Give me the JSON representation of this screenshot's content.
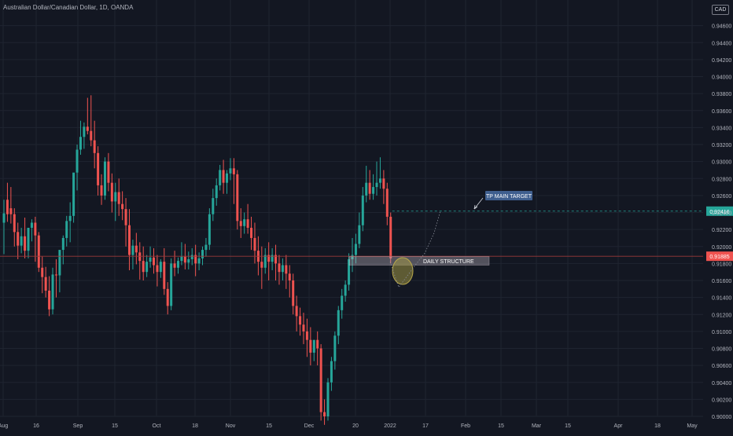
{
  "header": {
    "title": "Australian Dollar/Canadian Dollar, 1D, OANDA",
    "currency": "CAD"
  },
  "colors": {
    "background": "#131722",
    "up": "#26a69a",
    "down": "#ef5350",
    "axis_text": "#b2b5be",
    "grid": "#1f2430"
  },
  "annotations": {
    "target_label": "TP MAIN TARGET",
    "target_price": "0.92416",
    "current_price": "0.91885",
    "zone_label": "DAILY STRUCTURE"
  },
  "chart_data": {
    "type": "candlestick",
    "symbol": "AUDCAD",
    "timeframe": "1D",
    "source": "OANDA",
    "ylim": [
      0.9,
      0.948
    ],
    "y_ticks": [
      "0.94600",
      "0.94400",
      "0.94200",
      "0.94000",
      "0.93800",
      "0.93600",
      "0.93400",
      "0.93200",
      "0.93000",
      "0.92800",
      "0.92600",
      "0.92400",
      "0.92200",
      "0.92000",
      "0.91800",
      "0.91600",
      "0.91400",
      "0.91200",
      "0.91000",
      "0.90800",
      "0.90600",
      "0.90400",
      "0.90200",
      "0.90000"
    ],
    "x_ticks": [
      "Aug",
      "16",
      "Sep",
      "15",
      "Oct",
      "18",
      "Nov",
      "15",
      "Dec",
      "20",
      "2022",
      "17",
      "Feb",
      "15",
      "Mar",
      "15",
      "Apr",
      "18",
      "May"
    ],
    "target_level": 0.92416,
    "last_price": 0.91885,
    "structure_zone": [
      0.9178,
      0.9188
    ],
    "projection": [
      0.9182,
      0.9152,
      0.9178,
      0.9192,
      0.9216,
      0.9242
    ],
    "candles": [
      [
        0.9228,
        0.9255,
        0.9239,
        0.9191
      ],
      [
        0.9255,
        0.9275,
        0.9238,
        0.9229
      ],
      [
        0.9245,
        0.927,
        0.9238,
        0.9227
      ],
      [
        0.9238,
        0.9245,
        0.9217,
        0.92
      ],
      [
        0.9217,
        0.9228,
        0.9201,
        0.9185
      ],
      [
        0.9201,
        0.9222,
        0.9212,
        0.9192
      ],
      [
        0.9212,
        0.9234,
        0.9195,
        0.9186
      ],
      [
        0.9195,
        0.9215,
        0.9222,
        0.9186
      ],
      [
        0.9222,
        0.9232,
        0.9228,
        0.9206
      ],
      [
        0.9228,
        0.9235,
        0.9213,
        0.9182
      ],
      [
        0.9213,
        0.9217,
        0.9175,
        0.917
      ],
      [
        0.9175,
        0.9188,
        0.9164,
        0.9145
      ],
      [
        0.9164,
        0.9176,
        0.9148,
        0.914
      ],
      [
        0.9148,
        0.9165,
        0.9126,
        0.9118
      ],
      [
        0.9126,
        0.9175,
        0.9167,
        0.912
      ],
      [
        0.9167,
        0.9185,
        0.9166,
        0.914
      ],
      [
        0.9166,
        0.918,
        0.9196,
        0.9146
      ],
      [
        0.9196,
        0.9213,
        0.921,
        0.9179
      ],
      [
        0.921,
        0.9236,
        0.923,
        0.92
      ],
      [
        0.923,
        0.9252,
        0.9236,
        0.9205
      ],
      [
        0.9236,
        0.9268,
        0.9287,
        0.9228
      ],
      [
        0.9287,
        0.932,
        0.9314,
        0.9266
      ],
      [
        0.9314,
        0.9348,
        0.9329,
        0.9308
      ],
      [
        0.9329,
        0.9346,
        0.9341,
        0.9315
      ],
      [
        0.9341,
        0.9375,
        0.9336,
        0.9332
      ],
      [
        0.9336,
        0.9378,
        0.9325,
        0.9318
      ],
      [
        0.9325,
        0.9348,
        0.931,
        0.9292
      ],
      [
        0.931,
        0.9318,
        0.9272,
        0.926
      ],
      [
        0.9272,
        0.9285,
        0.926,
        0.9249
      ],
      [
        0.926,
        0.9305,
        0.93,
        0.9255
      ],
      [
        0.93,
        0.931,
        0.9275,
        0.9265
      ],
      [
        0.9275,
        0.9286,
        0.9253,
        0.924
      ],
      [
        0.9253,
        0.9275,
        0.9264,
        0.923
      ],
      [
        0.9264,
        0.928,
        0.925,
        0.9236
      ],
      [
        0.925,
        0.9265,
        0.9244,
        0.9231
      ],
      [
        0.9244,
        0.9257,
        0.9225,
        0.92
      ],
      [
        0.9225,
        0.9244,
        0.919,
        0.9172
      ],
      [
        0.919,
        0.9208,
        0.9201,
        0.9173
      ],
      [
        0.9201,
        0.9216,
        0.9193,
        0.9179
      ],
      [
        0.9193,
        0.9205,
        0.9183,
        0.9161
      ],
      [
        0.9183,
        0.92,
        0.917,
        0.916
      ],
      [
        0.917,
        0.919,
        0.9182,
        0.9164
      ],
      [
        0.9182,
        0.92,
        0.9187,
        0.9175
      ],
      [
        0.9187,
        0.9198,
        0.9178,
        0.9168
      ],
      [
        0.9178,
        0.919,
        0.917,
        0.9153
      ],
      [
        0.917,
        0.9185,
        0.9182,
        0.9163
      ],
      [
        0.9182,
        0.9198,
        0.915,
        0.9143
      ],
      [
        0.915,
        0.9158,
        0.913,
        0.912
      ],
      [
        0.913,
        0.9186,
        0.918,
        0.9125
      ],
      [
        0.918,
        0.9195,
        0.9175,
        0.9165
      ],
      [
        0.9175,
        0.9187,
        0.9183,
        0.9168
      ],
      [
        0.9183,
        0.9205,
        0.9188,
        0.9178
      ],
      [
        0.9188,
        0.9203,
        0.9181,
        0.9173
      ],
      [
        0.9181,
        0.9194,
        0.9185,
        0.9173
      ],
      [
        0.9185,
        0.9198,
        0.919,
        0.9178
      ],
      [
        0.919,
        0.9202,
        0.918,
        0.9165
      ],
      [
        0.918,
        0.9193,
        0.9186,
        0.9172
      ],
      [
        0.9186,
        0.92,
        0.9196,
        0.9178
      ],
      [
        0.9196,
        0.921,
        0.9202,
        0.9188
      ],
      [
        0.9202,
        0.9245,
        0.9238,
        0.9196
      ],
      [
        0.9238,
        0.9268,
        0.9257,
        0.923
      ],
      [
        0.9257,
        0.928,
        0.9272,
        0.9248
      ],
      [
        0.9272,
        0.9296,
        0.929,
        0.9266
      ],
      [
        0.929,
        0.9302,
        0.9275,
        0.9262
      ],
      [
        0.9275,
        0.929,
        0.9286,
        0.9262
      ],
      [
        0.9286,
        0.9304,
        0.9292,
        0.9278
      ],
      [
        0.9292,
        0.9304,
        0.9285,
        0.925
      ],
      [
        0.9285,
        0.929,
        0.923,
        0.922
      ],
      [
        0.923,
        0.9245,
        0.9224,
        0.921
      ],
      [
        0.9224,
        0.924,
        0.9232,
        0.9215
      ],
      [
        0.9232,
        0.925,
        0.9222,
        0.9215
      ],
      [
        0.9222,
        0.9235,
        0.921,
        0.9196
      ],
      [
        0.921,
        0.9228,
        0.9195,
        0.918
      ],
      [
        0.9195,
        0.9212,
        0.9182,
        0.9166
      ],
      [
        0.9182,
        0.92,
        0.9175,
        0.915
      ],
      [
        0.9175,
        0.9198,
        0.919,
        0.9168
      ],
      [
        0.919,
        0.9205,
        0.9182,
        0.916
      ],
      [
        0.9182,
        0.9198,
        0.919,
        0.9172
      ],
      [
        0.919,
        0.9202,
        0.918,
        0.916
      ],
      [
        0.918,
        0.919,
        0.917,
        0.9155
      ],
      [
        0.917,
        0.9186,
        0.9178,
        0.916
      ],
      [
        0.9178,
        0.919,
        0.9168,
        0.915
      ],
      [
        0.9168,
        0.9178,
        0.916,
        0.914
      ],
      [
        0.916,
        0.9168,
        0.913,
        0.912
      ],
      [
        0.913,
        0.9142,
        0.9118,
        0.91
      ],
      [
        0.9118,
        0.9128,
        0.9108,
        0.9095
      ],
      [
        0.9108,
        0.9122,
        0.91,
        0.9085
      ],
      [
        0.91,
        0.9115,
        0.909,
        0.907
      ],
      [
        0.909,
        0.9105,
        0.9075,
        0.906
      ],
      [
        0.9075,
        0.909,
        0.909,
        0.9065
      ],
      [
        0.909,
        0.91,
        0.908,
        0.906
      ],
      [
        0.908,
        0.9085,
        0.9005,
        0.8995
      ],
      [
        0.9005,
        0.902,
        0.9,
        0.899
      ],
      [
        0.9,
        0.9045,
        0.904,
        0.8995
      ],
      [
        0.904,
        0.907,
        0.9065,
        0.903
      ],
      [
        0.9065,
        0.91,
        0.9095,
        0.9055
      ],
      [
        0.9095,
        0.913,
        0.9125,
        0.9085
      ],
      [
        0.9125,
        0.915,
        0.9142,
        0.9115
      ],
      [
        0.9142,
        0.916,
        0.9155,
        0.9135
      ],
      [
        0.9155,
        0.9192,
        0.9185,
        0.9148
      ],
      [
        0.9185,
        0.921,
        0.919,
        0.917
      ],
      [
        0.919,
        0.9215,
        0.9203,
        0.918
      ],
      [
        0.9203,
        0.924,
        0.9225,
        0.9198
      ],
      [
        0.9225,
        0.927,
        0.926,
        0.9218
      ],
      [
        0.926,
        0.9295,
        0.9275,
        0.9252
      ],
      [
        0.9275,
        0.929,
        0.9262,
        0.9255
      ],
      [
        0.9262,
        0.9285,
        0.927,
        0.9255
      ],
      [
        0.927,
        0.93,
        0.9275,
        0.926
      ],
      [
        0.9275,
        0.9305,
        0.928,
        0.9268
      ],
      [
        0.928,
        0.929,
        0.9268,
        0.925
      ],
      [
        0.9268,
        0.9275,
        0.9235,
        0.9225
      ],
      [
        0.9235,
        0.924,
        0.9186,
        0.918
      ]
    ]
  }
}
